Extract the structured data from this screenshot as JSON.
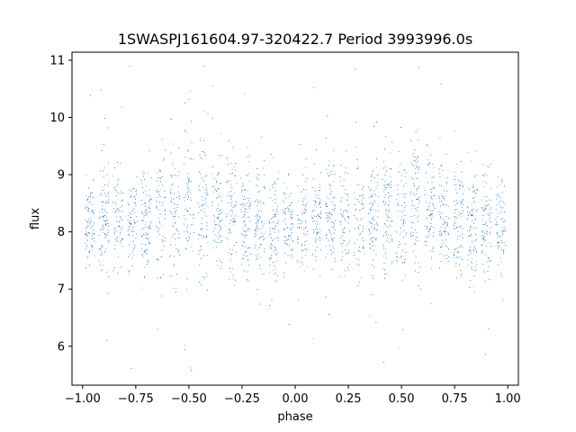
{
  "chart_data": {
    "type": "scatter",
    "title": "1SWASPJ161604.97-320422.7 Period 3993996.0s",
    "xlabel": "phase",
    "ylabel": "flux",
    "xlim": [
      -1.05,
      1.05
    ],
    "ylim": [
      5.32,
      11.14
    ],
    "xticks": [
      -1.0,
      -0.75,
      -0.5,
      -0.25,
      0.0,
      0.25,
      0.5,
      0.75,
      1.0
    ],
    "xtick_labels": [
      "−1.00",
      "−0.75",
      "−0.50",
      "−0.25",
      "0.00",
      "0.25",
      "0.50",
      "0.75",
      "1.00"
    ],
    "yticks": [
      6,
      7,
      8,
      9,
      10,
      11
    ],
    "ytick_labels": [
      "6",
      "7",
      "8",
      "9",
      "10",
      "11"
    ],
    "grid": false,
    "legend": "none",
    "series": [
      {
        "color": "#1f77b4",
        "marker_size": 0.8,
        "profile": {
          "phase": [
            -1.0,
            -0.95,
            -0.9,
            -0.85,
            -0.8,
            -0.75,
            -0.7,
            -0.65,
            -0.6,
            -0.55,
            -0.5,
            -0.45,
            -0.4,
            -0.35,
            -0.3,
            -0.25,
            -0.2,
            -0.15,
            -0.1,
            -0.05,
            0.0,
            0.05,
            0.1,
            0.15,
            0.2,
            0.25,
            0.3,
            0.35,
            0.4,
            0.45,
            0.5,
            0.55,
            0.6,
            0.65,
            0.7,
            0.75,
            0.8,
            0.85,
            0.9,
            0.95,
            1.0
          ],
          "median_flux": [
            8.1,
            8.15,
            8.2,
            8.2,
            8.1,
            8.15,
            8.2,
            8.25,
            8.3,
            8.3,
            8.35,
            8.4,
            8.4,
            8.3,
            8.25,
            8.2,
            8.15,
            8.1,
            8.1,
            8.15,
            8.1,
            8.15,
            8.2,
            8.15,
            8.1,
            8.15,
            8.2,
            8.25,
            8.3,
            8.3,
            8.35,
            8.4,
            8.4,
            8.3,
            8.25,
            8.2,
            8.15,
            8.1,
            8.1,
            8.15,
            8.1
          ],
          "spread": [
            0.35,
            0.45,
            0.5,
            0.5,
            0.45,
            0.45,
            0.5,
            0.5,
            0.55,
            0.55,
            0.6,
            0.65,
            0.6,
            0.55,
            0.5,
            0.5,
            0.5,
            0.5,
            0.45,
            0.45,
            0.4,
            0.45,
            0.5,
            0.5,
            0.45,
            0.45,
            0.5,
            0.5,
            0.55,
            0.55,
            0.6,
            0.65,
            0.6,
            0.55,
            0.5,
            0.5,
            0.5,
            0.5,
            0.45,
            0.45,
            0.35
          ]
        },
        "flux_min": 5.55,
        "flux_max": 10.92
      }
    ]
  }
}
